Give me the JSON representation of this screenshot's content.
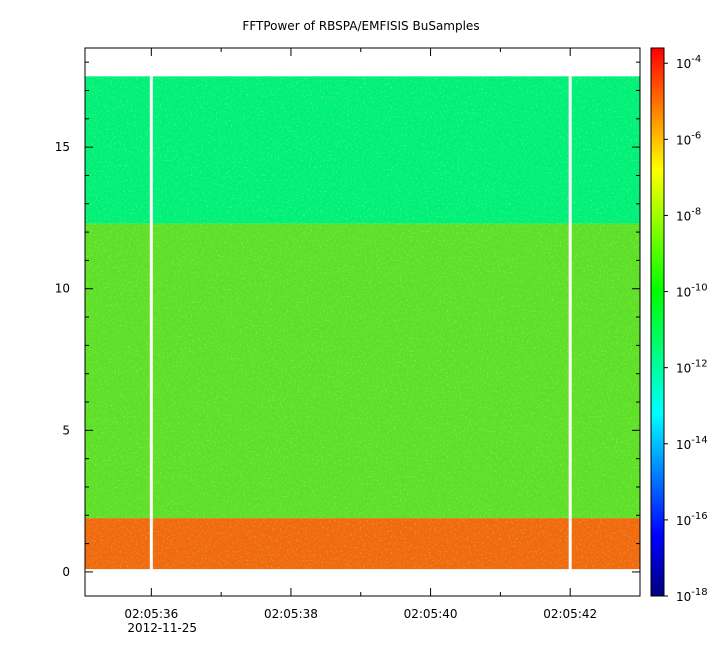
{
  "chart_data": {
    "type": "heatmap",
    "title": "FFTPower of RBSPA/EMFISIS  BuSamples",
    "xlabel": "",
    "ylabel": "",
    "x_ticks": [
      {
        "label": "02:05:36",
        "sub": "2012-11-25",
        "t": 36
      },
      {
        "label": "02:05:38",
        "sub": "",
        "t": 38
      },
      {
        "label": "02:05:40",
        "sub": "",
        "t": 40
      },
      {
        "label": "02:05:42",
        "sub": "",
        "t": 42
      }
    ],
    "x_range_seconds": [
      35.05,
      43.0
    ],
    "y_ticks": [
      "0",
      "5",
      "10",
      "15"
    ],
    "y_tick_values": [
      0,
      5,
      10,
      15
    ],
    "ylim": [
      -0.85,
      18.5
    ],
    "colorbar": {
      "scale": "log",
      "range_exp": [
        -18,
        -3.6
      ],
      "tick_base": "10",
      "tick_exponents": [
        "-4",
        "-6",
        "-8",
        "-10",
        "-12",
        "-14",
        "-16",
        "-18"
      ],
      "colors": [
        "#00007f",
        "#0000ff",
        "#007fff",
        "#00ffff",
        "#00ff7f",
        "#00ff00",
        "#7fff00",
        "#ffff00",
        "#ff7f00",
        "#ff0000"
      ]
    },
    "bands": [
      {
        "y_from": 0.1,
        "y_to": 1.9,
        "value_exp": -7.0,
        "color": "#f06a10"
      },
      {
        "y_from": 1.9,
        "y_to": 12.3,
        "value_exp": -10.3,
        "color": "#5ee02a"
      },
      {
        "y_from": 12.3,
        "y_to": 17.5,
        "value_exp": -12.3,
        "color": "#00f07a"
      }
    ],
    "data_gaps_seconds": [
      36.0,
      42.0
    ],
    "grid": false
  }
}
